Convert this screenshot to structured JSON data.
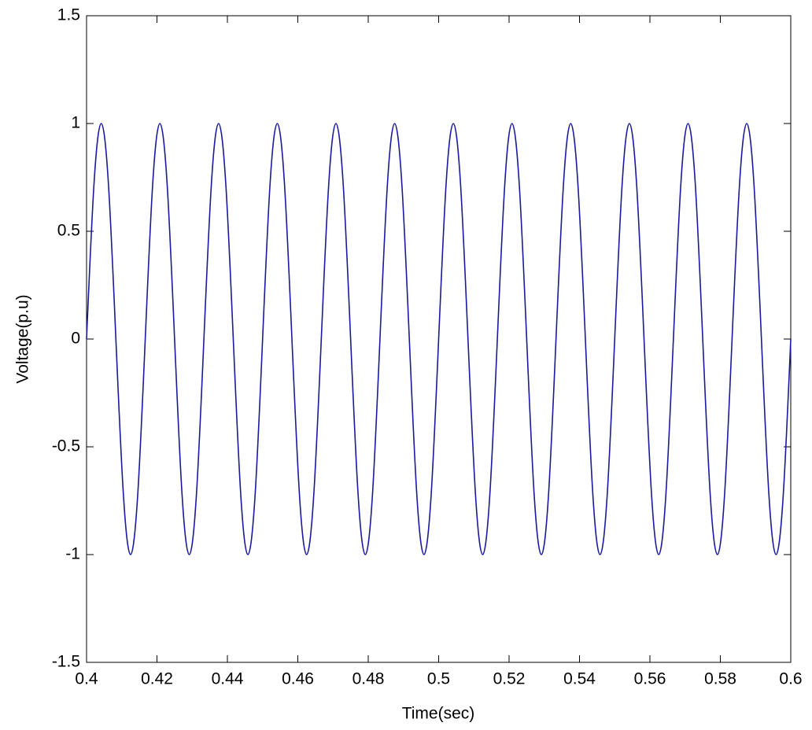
{
  "chart_data": {
    "type": "line",
    "x_label": "Time(sec)",
    "y_label": "Voltage(p.u)",
    "xlim": [
      0.4,
      0.6
    ],
    "ylim": [
      -1.5,
      1.5
    ],
    "xticks": [
      0.4,
      0.42,
      0.44,
      0.46,
      0.48,
      0.5,
      0.52,
      0.54,
      0.56,
      0.58,
      0.6
    ],
    "yticks": [
      -1.5,
      -1,
      -0.5,
      0,
      0.5,
      1,
      1.5
    ],
    "series": [
      {
        "color": "#1a1aa0",
        "x": [
          0.4,
          0.40208,
          0.40417,
          0.40625,
          0.40833,
          0.41042,
          0.4125,
          0.41458,
          0.41667,
          0.41875,
          0.42083,
          0.42292,
          0.425,
          0.42708,
          0.42917,
          0.43125,
          0.43333,
          0.43542,
          0.4375,
          0.43958,
          0.44167,
          0.44375,
          0.44583,
          0.44792,
          0.45,
          0.45208,
          0.45417,
          0.45625,
          0.45833,
          0.46042,
          0.4625,
          0.46458,
          0.46667,
          0.46875,
          0.47083,
          0.47292,
          0.475,
          0.47708,
          0.47917,
          0.48125,
          0.48333,
          0.48542,
          0.4875,
          0.48958,
          0.49167,
          0.49375,
          0.49583,
          0.49792,
          0.5,
          0.50208,
          0.50417,
          0.50625,
          0.50833,
          0.51042,
          0.5125,
          0.51458,
          0.51667,
          0.51875,
          0.52083,
          0.52292,
          0.525,
          0.52708,
          0.52917,
          0.53125,
          0.53333,
          0.53542,
          0.5375,
          0.53958,
          0.54167,
          0.54375,
          0.54583,
          0.54792,
          0.55,
          0.55208,
          0.55417,
          0.55625,
          0.55833,
          0.56042,
          0.5625,
          0.56458,
          0.56667,
          0.56875,
          0.57083,
          0.57292,
          0.575,
          0.57708,
          0.57917,
          0.58125,
          0.58333,
          0.58542,
          0.5875,
          0.58958,
          0.59167,
          0.59375,
          0.59583,
          0.59792,
          0.6
        ],
        "values": [
          0,
          0.71,
          1,
          0.71,
          0,
          -0.71,
          -1,
          -0.71,
          0,
          0.71,
          1,
          0.71,
          0,
          -0.71,
          -1,
          -0.71,
          0,
          0.71,
          1,
          0.71,
          0,
          -0.71,
          -1,
          -0.71,
          0,
          0.71,
          1,
          0.71,
          0,
          -0.71,
          -1,
          -0.71,
          0,
          0.71,
          1,
          0.71,
          0,
          -0.71,
          -1,
          -0.71,
          0,
          0.71,
          1,
          0.71,
          0,
          -0.71,
          -1,
          -0.71,
          0,
          0.71,
          1,
          0.71,
          0,
          -0.71,
          -1,
          -0.71,
          0,
          0.71,
          1,
          0.71,
          0,
          -0.71,
          -1,
          -0.71,
          0,
          0.71,
          1,
          0.71,
          0,
          -0.71,
          -1,
          -0.71,
          0,
          0.71,
          1,
          0.71,
          0,
          -0.71,
          -1,
          -0.71,
          0,
          0.71,
          1,
          0.71,
          0,
          -0.71,
          -1,
          -0.71,
          0,
          0.71,
          1,
          0.71,
          0,
          -0.71,
          -1,
          -0.71,
          0
        ]
      }
    ]
  }
}
